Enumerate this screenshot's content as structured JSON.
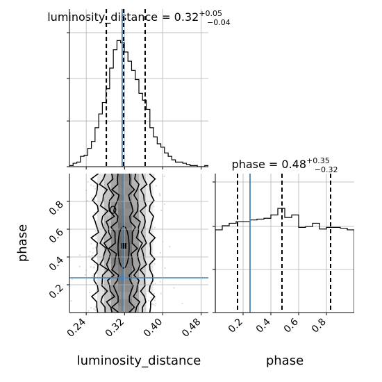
{
  "chart_data": [
    {
      "type": "histogram",
      "panel": "luminosity_distance marginal",
      "title": {
        "base": "luminosity_distance = 0.32",
        "sup": "+0.05",
        "sub": "−0.04"
      },
      "x": {
        "range": [
          0.205,
          0.495
        ],
        "ticks": [
          0.24,
          0.32,
          0.4,
          0.48
        ],
        "tick_labels": [
          "0.24",
          "0.32",
          "0.40",
          "0.48"
        ]
      },
      "bin_edges": [
        0.205,
        0.2126,
        0.2203,
        0.2279,
        0.2355,
        0.2432,
        0.2508,
        0.2584,
        0.2661,
        0.2737,
        0.2813,
        0.2889,
        0.2966,
        0.3042,
        0.3118,
        0.3195,
        0.3271,
        0.3347,
        0.3424,
        0.35,
        0.3576,
        0.3653,
        0.3729,
        0.3805,
        0.3882,
        0.3958,
        0.4034,
        0.4111,
        0.4187,
        0.4263,
        0.4339,
        0.4416,
        0.4492,
        0.4568,
        0.4645,
        0.4721,
        0.4797,
        0.4874,
        0.495
      ],
      "counts": [
        1,
        3,
        4,
        9,
        10,
        16,
        22,
        34,
        46,
        56,
        68,
        86,
        102,
        110,
        108,
        100,
        92,
        84,
        76,
        64,
        58,
        50,
        34,
        26,
        20,
        17,
        12,
        9,
        6,
        4,
        4,
        3,
        2,
        1,
        1,
        0,
        0,
        1
      ],
      "quantiles": [
        0.282,
        0.318,
        0.363
      ],
      "truth": 0.315,
      "grid": true,
      "line_color": "#000000",
      "quantile_style": "dashed",
      "truth_color": "#4682b4"
    },
    {
      "type": "histogram",
      "panel": "phase marginal",
      "title": {
        "base": "phase = 0.48",
        "sup": "+0.35",
        "sub": "−0.32"
      },
      "x": {
        "range": [
          0.0,
          1.0
        ],
        "ticks": [
          0.2,
          0.4,
          0.6,
          0.8
        ],
        "tick_labels": [
          "0.2",
          "0.4",
          "0.6",
          "0.8"
        ]
      },
      "bin_edges": [
        0.0,
        0.05,
        0.1,
        0.15,
        0.2,
        0.25,
        0.3,
        0.35,
        0.4,
        0.45,
        0.5,
        0.55,
        0.6,
        0.65,
        0.7,
        0.75,
        0.8,
        0.85,
        0.9,
        0.95,
        1.0
      ],
      "counts": [
        100,
        105,
        108,
        110,
        110,
        112,
        113,
        114,
        118,
        126,
        115,
        118,
        103,
        104,
        108,
        101,
        103,
        103,
        102,
        100
      ],
      "quantiles": [
        0.16,
        0.48,
        0.83
      ],
      "truth": 0.25,
      "grid": true,
      "line_color": "#000000",
      "quantile_style": "dashed",
      "truth_color": "#4682b4"
    },
    {
      "type": "contour-scatter",
      "panel": "phase vs luminosity_distance",
      "x": {
        "range": [
          0.205,
          0.495
        ],
        "ticks": [
          0.24,
          0.32,
          0.4,
          0.48
        ],
        "tick_labels": [
          "0.24",
          "0.32",
          "0.40",
          "0.48"
        ],
        "label": "luminosity_distance"
      },
      "y": {
        "range": [
          0.0,
          1.0
        ],
        "ticks": [
          0.2,
          0.4,
          0.6,
          0.8
        ],
        "tick_labels": [
          "0.2",
          "0.4",
          "0.6",
          "0.8"
        ],
        "label": "phase"
      },
      "truth": {
        "x": 0.315,
        "y": 0.25
      },
      "peak": {
        "x": 0.318,
        "y": 0.48
      },
      "density_x_center": 0.318,
      "density_x_sigma": 0.028,
      "contour_levels": 4,
      "grid": true,
      "truth_color": "#4682b4"
    }
  ]
}
